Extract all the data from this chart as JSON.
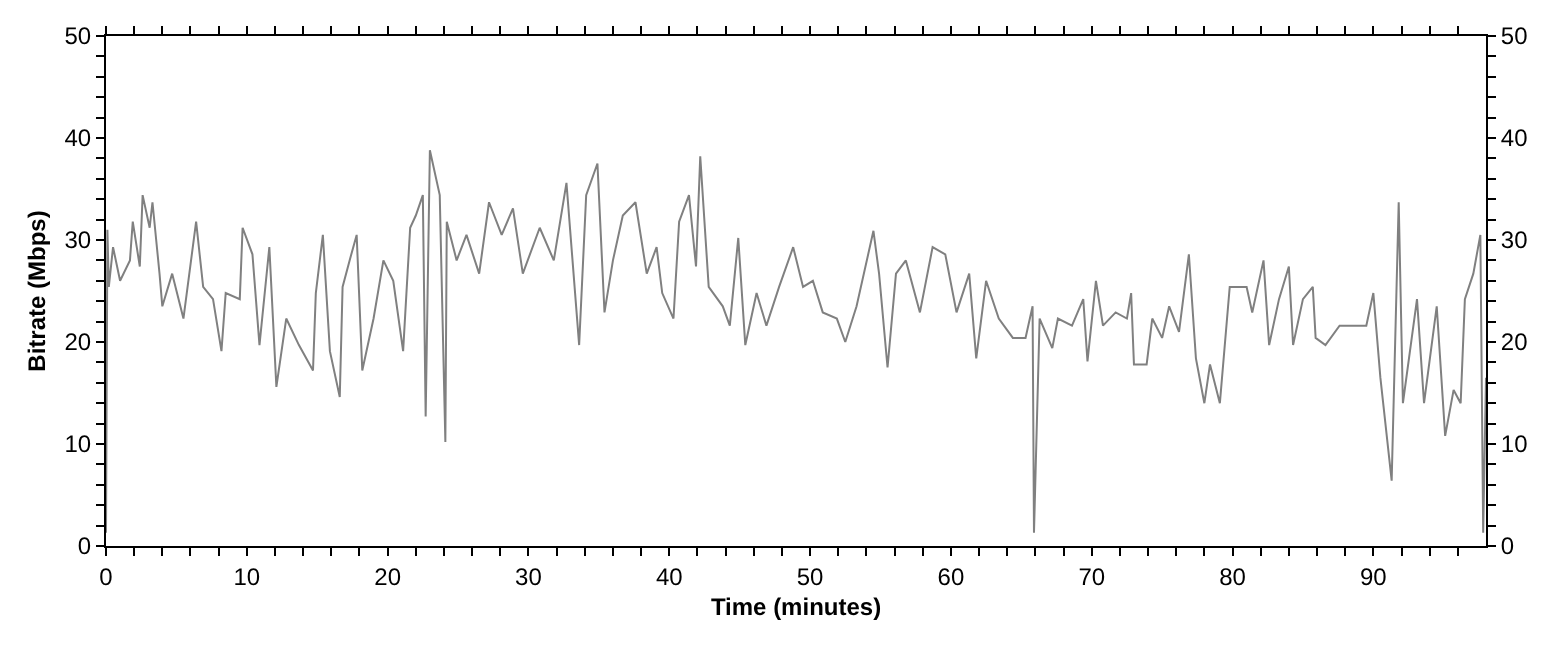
{
  "chart_data": {
    "type": "line",
    "xlabel": "Time (minutes)",
    "ylabel": "Bitrate (Mbps)",
    "x": [
      0,
      0.1,
      0.2,
      0.5,
      1,
      1.7,
      1.9,
      2.4,
      2.6,
      3.1,
      3.3,
      3.8,
      4,
      4.7,
      5.5,
      6.4,
      6.9,
      7.6,
      8.2,
      8.5,
      9.5,
      9.7,
      10.4,
      10.9,
      11.6,
      12.1,
      12.8,
      13.7,
      14.7,
      14.9,
      15.4,
      15.9,
      16.6,
      16.8,
      17.3,
      17.8,
      18.2,
      19,
      19.7,
      20.4,
      21.1,
      21.6,
      22,
      22.5,
      22.7,
      23,
      23.7,
      24.1,
      24.2,
      24.9,
      25.6,
      26.5,
      27.2,
      28.1,
      28.9,
      29.6,
      30.8,
      31.8,
      32.7,
      33.6,
      34.1,
      34.9,
      35.4,
      36,
      36.7,
      37.6,
      38.4,
      39.1,
      39.5,
      40.3,
      40.7,
      41.4,
      41.9,
      42.2,
      42.8,
      43.8,
      44.3,
      44.9,
      45.4,
      46.2,
      46.9,
      47.8,
      48.8,
      49.5,
      50.2,
      50.9,
      51.9,
      52.5,
      53.3,
      54.5,
      54.9,
      55.5,
      56.1,
      56.8,
      57.8,
      58.7,
      59.6,
      60.4,
      61.3,
      61.8,
      62.5,
      63.4,
      64.4,
      65.3,
      65.8,
      65.9,
      66.3,
      67.2,
      67.6,
      68.6,
      69.4,
      69.7,
      70.3,
      70.8,
      71.7,
      72.5,
      72.8,
      73,
      73.9,
      74.3,
      75,
      75.5,
      76.2,
      76.9,
      77.4,
      78,
      78.4,
      79.1,
      79.8,
      81,
      81.4,
      82.2,
      82.6,
      83.3,
      84,
      84.3,
      85,
      85.7,
      85.9,
      86.6,
      87.6,
      88.5,
      89.5,
      90,
      90.5,
      91.3,
      91.8,
      92.1,
      93.1,
      93.6,
      94.5,
      95.1,
      95.7,
      96.2,
      96.5,
      97.1,
      97.6,
      97.8,
      98
    ],
    "series": [
      {
        "color": "#808080",
        "values": [
          1.3,
          31,
          25.4,
          29.3,
          26,
          28,
          31.8,
          27.4,
          34.4,
          31.2,
          33.7,
          26.7,
          23.5,
          26.7,
          22.3,
          31.8,
          25.4,
          24.2,
          19.1,
          24.8,
          24.2,
          31.2,
          28.6,
          19.7,
          29.3,
          15.6,
          22.3,
          19.7,
          17.2,
          24.8,
          30.5,
          19.1,
          14.6,
          25.4,
          28,
          30.5,
          17.2,
          22.3,
          28,
          26,
          19.1,
          31.2,
          32.4,
          34.4,
          12.7,
          38.8,
          34.4,
          10.2,
          31.8,
          28,
          30.5,
          26.7,
          33.7,
          30.5,
          33.1,
          26.7,
          31.2,
          28,
          35.6,
          19.7,
          34.4,
          37.5,
          22.9,
          28,
          32.4,
          33.7,
          26.7,
          29.3,
          24.8,
          22.3,
          31.8,
          34.4,
          27.4,
          38.2,
          25.4,
          23.5,
          21.6,
          30.2,
          19.7,
          24.8,
          21.6,
          25.4,
          29.3,
          25.4,
          26,
          22.9,
          22.3,
          20,
          23.5,
          30.9,
          26.7,
          17.5,
          26.7,
          28,
          22.9,
          29.3,
          28.6,
          22.9,
          26.7,
          18.4,
          26,
          22.3,
          20.4,
          20.4,
          23.5,
          1.3,
          22.3,
          19.4,
          22.3,
          21.6,
          24.2,
          18.1,
          26,
          21.6,
          22.9,
          22.3,
          24.8,
          17.8,
          17.8,
          22.3,
          20.4,
          23.5,
          21,
          28.6,
          18.4,
          14,
          17.8,
          14,
          25.4,
          25.4,
          22.9,
          28,
          19.7,
          24.2,
          27.4,
          19.7,
          24.2,
          25.4,
          20.4,
          19.7,
          21.6,
          21.6,
          21.6,
          24.8,
          16.5,
          6.4,
          33.7,
          14,
          24.2,
          14,
          23.5,
          10.8,
          15.3,
          14,
          24.2,
          26.7,
          30.5,
          1.3,
          16.5
        ]
      }
    ],
    "xlim": [
      0,
      98
    ],
    "xticks": [
      0,
      {
        "value": 2,
        "label": null
      },
      {
        "value": 4,
        "label": null
      },
      {
        "value": 6,
        "label": null
      },
      {
        "value": 8,
        "label": null
      },
      10,
      {
        "value": 12,
        "label": null
      },
      {
        "value": 14,
        "label": null
      },
      {
        "value": 16,
        "label": null
      },
      {
        "value": 18,
        "label": null
      },
      20,
      {
        "value": 22,
        "label": null
      },
      {
        "value": 24,
        "label": null
      },
      {
        "value": 26,
        "label": null
      },
      {
        "value": 28,
        "label": null
      },
      30,
      {
        "value": 32,
        "label": null
      },
      {
        "value": 34,
        "label": null
      },
      {
        "value": 36,
        "label": null
      },
      {
        "value": 38,
        "label": null
      },
      40,
      {
        "value": 42,
        "label": null
      },
      {
        "value": 44,
        "label": null
      },
      {
        "value": 46,
        "label": null
      },
      {
        "value": 48,
        "label": null
      },
      50,
      {
        "value": 52,
        "label": null
      },
      {
        "value": 54,
        "label": null
      },
      {
        "value": 56,
        "label": null
      },
      {
        "value": 58,
        "label": null
      },
      60,
      {
        "value": 62,
        "label": null
      },
      {
        "value": 64,
        "label": null
      },
      {
        "value": 66,
        "label": null
      },
      {
        "value": 68,
        "label": null
      },
      70,
      {
        "value": 72,
        "label": null
      },
      {
        "value": 74,
        "label": null
      },
      {
        "value": 76,
        "label": null
      },
      {
        "value": 78,
        "label": null
      },
      80,
      {
        "value": 82,
        "label": null
      },
      {
        "value": 84,
        "label": null
      },
      {
        "value": 86,
        "label": null
      },
      {
        "value": 88,
        "label": null
      },
      90,
      {
        "value": 92,
        "label": null
      },
      {
        "value": 94,
        "label": null
      },
      {
        "value": 96,
        "label": null
      }
    ],
    "ylim": [
      0,
      50
    ],
    "yticks": [
      0,
      {
        "value": 2,
        "label": null
      },
      {
        "value": 4,
        "label": null
      },
      {
        "value": 6,
        "label": null
      },
      {
        "value": 8,
        "label": null
      },
      10,
      {
        "value": 12,
        "label": null
      },
      {
        "value": 14,
        "label": null
      },
      {
        "value": 16,
        "label": null
      },
      {
        "value": 18,
        "label": null
      },
      20,
      {
        "value": 22,
        "label": null
      },
      {
        "value": 24,
        "label": null
      },
      {
        "value": 26,
        "label": null
      },
      {
        "value": 28,
        "label": null
      },
      30,
      {
        "value": 32,
        "label": null
      },
      {
        "value": 34,
        "label": null
      },
      {
        "value": 36,
        "label": null
      },
      {
        "value": 38,
        "label": null
      },
      40,
      {
        "value": 42,
        "label": null
      },
      {
        "value": 44,
        "label": null
      },
      {
        "value": 46,
        "label": null
      },
      {
        "value": 48,
        "label": null
      },
      50
    ],
    "y2lim": [
      0,
      50
    ],
    "y2ticks": [
      0,
      {
        "value": 2,
        "label": null
      },
      {
        "value": 4,
        "label": null
      },
      {
        "value": 6,
        "label": null
      },
      {
        "value": 8,
        "label": null
      },
      10,
      {
        "value": 12,
        "label": null
      },
      {
        "value": 14,
        "label": null
      },
      {
        "value": 16,
        "label": null
      },
      {
        "value": 18,
        "label": null
      },
      20,
      {
        "value": 22,
        "label": null
      },
      {
        "value": 24,
        "label": null
      },
      {
        "value": 26,
        "label": null
      },
      {
        "value": 28,
        "label": null
      },
      30,
      {
        "value": 32,
        "label": null
      },
      {
        "value": 34,
        "label": null
      },
      {
        "value": 36,
        "label": null
      },
      {
        "value": 38,
        "label": null
      },
      40,
      {
        "value": 42,
        "label": null
      },
      {
        "value": 44,
        "label": null
      },
      {
        "value": 46,
        "label": null
      },
      {
        "value": 48,
        "label": null
      },
      50
    ],
    "grid": false,
    "legend": false,
    "marker": "none",
    "line_style": "solid"
  }
}
